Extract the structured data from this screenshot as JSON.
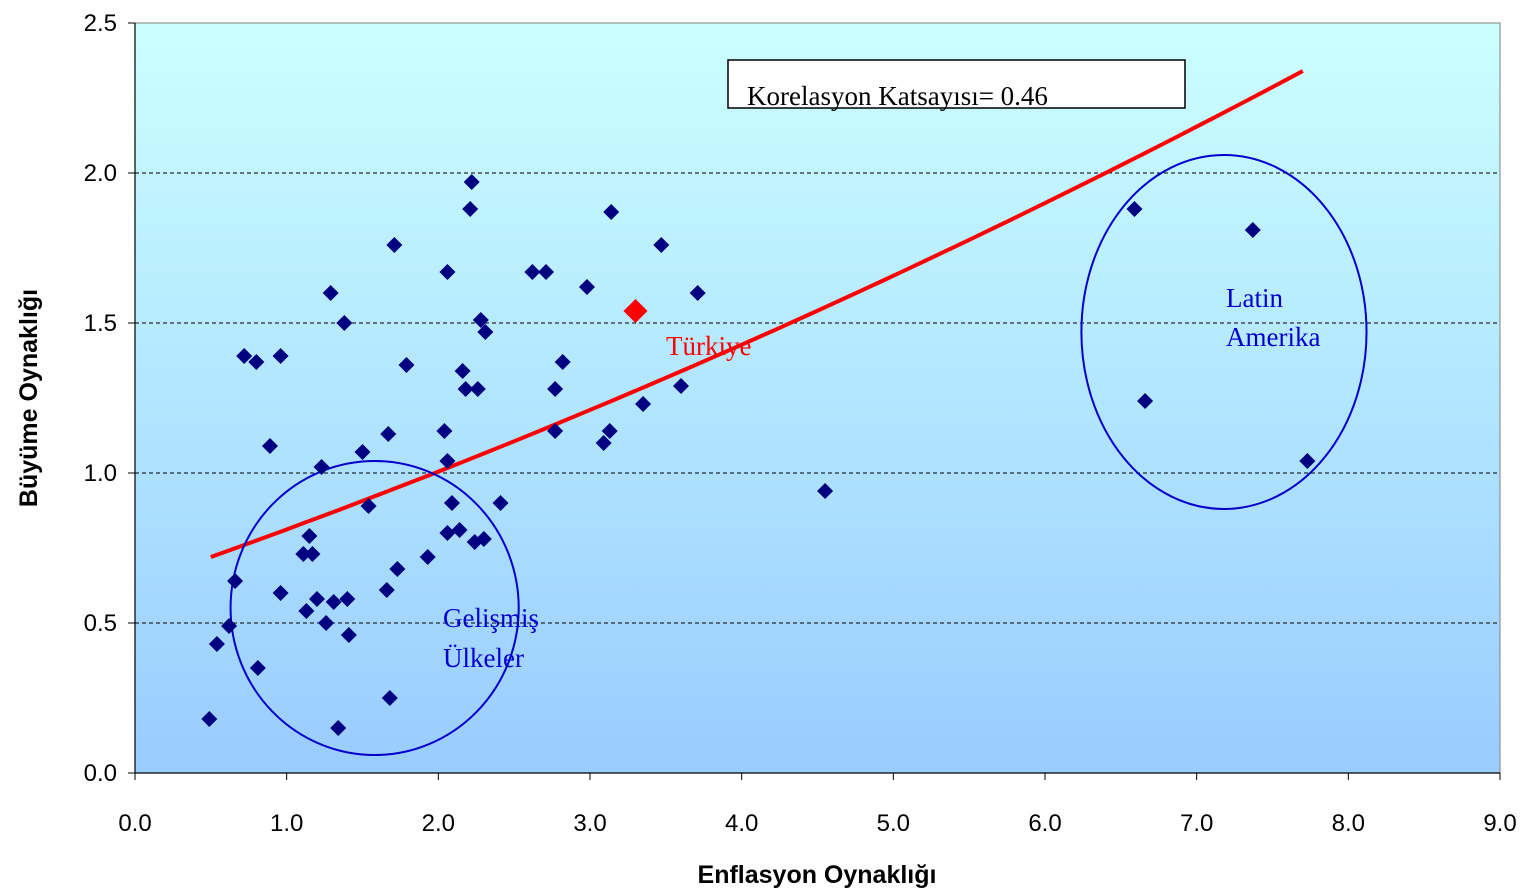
{
  "chart_data": {
    "type": "scatter",
    "xlabel": "Enflasyon Oynaklığı",
    "ylabel": "Büyüme Oynaklığı",
    "xlim": [
      0,
      9
    ],
    "ylim": [
      0,
      2.5
    ],
    "x_ticks": [
      "0.0",
      "1.0",
      "2.0",
      "3.0",
      "4.0",
      "5.0",
      "6.0",
      "7.0",
      "8.0",
      "9.0"
    ],
    "y_ticks": [
      "0.0",
      "0.5",
      "1.0",
      "1.5",
      "2.0",
      "2.5"
    ],
    "y_grid": "dashed",
    "background_gradient": [
      "#ccffff",
      "#99ccff"
    ],
    "point_color": "#000080",
    "highlight_color": "#ff0000",
    "trend_color": "#ff0000",
    "ellipse_color": "#0000cc",
    "annotation_box": "Korelasyon Katsayısı= 0.46",
    "highlight": {
      "label": "Türkiye",
      "x": 3.3,
      "y": 1.54
    },
    "trendline": {
      "x_start": 0.5,
      "x_end": 7.7,
      "y_start": 0.72,
      "y_end": 2.34,
      "shape": "slightly convex"
    },
    "groups": [
      {
        "label_lines": [
          "Gelişmiş",
          "Ülkeler"
        ],
        "cx": 1.58,
        "cy": 0.55,
        "rx": 0.95,
        "ry": 0.49
      },
      {
        "label_lines": [
          "Latin",
          "Amerika"
        ],
        "cx": 7.18,
        "cy": 1.47,
        "rx": 0.94,
        "ry": 0.59
      }
    ],
    "points": [
      [
        0.49,
        0.18
      ],
      [
        0.54,
        0.43
      ],
      [
        0.62,
        0.49
      ],
      [
        0.66,
        0.64
      ],
      [
        0.72,
        1.39
      ],
      [
        0.8,
        1.37
      ],
      [
        0.81,
        0.35
      ],
      [
        0.89,
        1.09
      ],
      [
        0.96,
        0.6
      ],
      [
        0.96,
        1.39
      ],
      [
        1.11,
        0.73
      ],
      [
        1.13,
        0.54
      ],
      [
        1.15,
        0.79
      ],
      [
        1.17,
        0.73
      ],
      [
        1.2,
        0.58
      ],
      [
        1.23,
        1.02
      ],
      [
        1.26,
        0.5
      ],
      [
        1.29,
        1.6
      ],
      [
        1.31,
        0.57
      ],
      [
        1.34,
        0.15
      ],
      [
        1.38,
        1.5
      ],
      [
        1.4,
        0.58
      ],
      [
        1.41,
        0.46
      ],
      [
        1.5,
        1.07
      ],
      [
        1.54,
        0.89
      ],
      [
        1.66,
        0.61
      ],
      [
        1.67,
        1.13
      ],
      [
        1.68,
        0.25
      ],
      [
        1.71,
        1.76
      ],
      [
        1.73,
        0.68
      ],
      [
        1.79,
        1.36
      ],
      [
        1.93,
        0.72
      ],
      [
        2.04,
        1.14
      ],
      [
        2.06,
        1.04
      ],
      [
        2.06,
        1.67
      ],
      [
        2.06,
        0.8
      ],
      [
        2.09,
        0.9
      ],
      [
        2.14,
        0.81
      ],
      [
        2.16,
        1.34
      ],
      [
        2.18,
        1.28
      ],
      [
        2.21,
        1.88
      ],
      [
        2.22,
        1.97
      ],
      [
        2.24,
        0.77
      ],
      [
        2.26,
        1.28
      ],
      [
        2.28,
        1.51
      ],
      [
        2.3,
        0.78
      ],
      [
        2.31,
        1.47
      ],
      [
        2.41,
        0.9
      ],
      [
        2.62,
        1.67
      ],
      [
        2.71,
        1.67
      ],
      [
        2.77,
        1.28
      ],
      [
        2.77,
        1.14
      ],
      [
        2.82,
        1.37
      ],
      [
        2.98,
        1.62
      ],
      [
        3.09,
        1.1
      ],
      [
        3.13,
        1.14
      ],
      [
        3.14,
        1.87
      ],
      [
        3.35,
        1.23
      ],
      [
        3.47,
        1.76
      ],
      [
        3.6,
        1.29
      ],
      [
        3.71,
        1.6
      ],
      [
        4.55,
        0.94
      ],
      [
        6.59,
        1.88
      ],
      [
        6.66,
        1.24
      ],
      [
        7.37,
        1.81
      ],
      [
        7.73,
        1.04
      ]
    ]
  }
}
